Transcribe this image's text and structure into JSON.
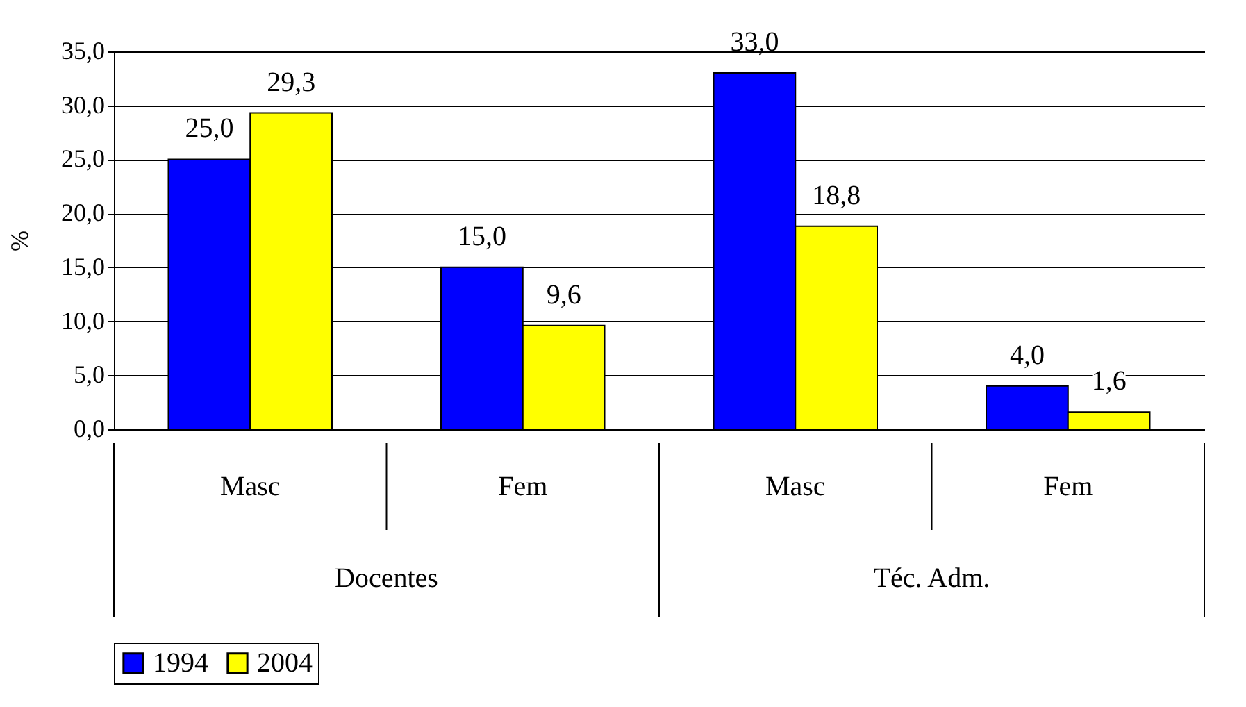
{
  "chart_data": {
    "type": "bar",
    "ylabel": "%",
    "categories": [
      "Masc",
      "Fem",
      "Masc",
      "Fem"
    ],
    "annotations": [
      "Docentes",
      "Téc. Adm."
    ],
    "series": [
      {
        "name": "1994",
        "color": "#0000ff",
        "values": [
          25.0,
          15.0,
          33.0,
          4.0
        ],
        "value_labels": [
          "25,0",
          "15,0",
          "33,0",
          "4,0"
        ]
      },
      {
        "name": "2004",
        "color": "#ffff00",
        "values": [
          29.3,
          9.6,
          18.8,
          1.6
        ],
        "value_labels": [
          "29,3",
          "9,6",
          "18,8",
          "1,6"
        ]
      }
    ],
    "ylim": [
      0,
      35
    ],
    "yticks": [
      {
        "value": 0,
        "label": "0,0"
      },
      {
        "value": 5,
        "label": "5,0"
      },
      {
        "value": 10,
        "label": "10,0"
      },
      {
        "value": 15,
        "label": "15,0"
      },
      {
        "value": 20,
        "label": "20,0"
      },
      {
        "value": 25,
        "label": "25,0"
      },
      {
        "value": 30,
        "label": "30,0"
      },
      {
        "value": 35,
        "label": "35,0"
      }
    ],
    "grid": "y",
    "legend": "bottom"
  }
}
